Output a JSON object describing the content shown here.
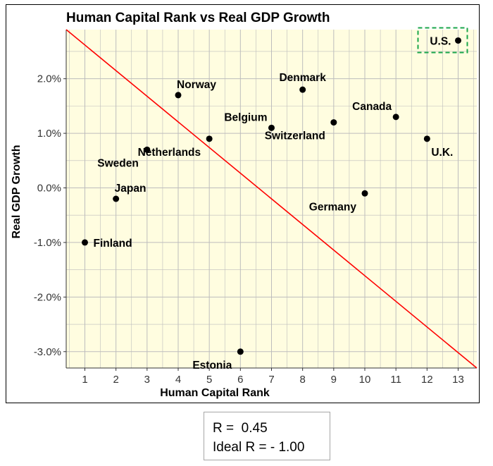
{
  "chart_data": {
    "type": "scatter",
    "title": "Human Capital Rank vs Real GDP Growth",
    "xlabel": "Human Capital Rank",
    "ylabel": "Real GDP Growth",
    "xlim": [
      0.4,
      13.6
    ],
    "ylim": [
      -3.3,
      2.9
    ],
    "x_ticks": [
      1,
      2,
      3,
      4,
      5,
      6,
      7,
      8,
      9,
      10,
      11,
      12,
      13
    ],
    "y_ticks": [
      -3.0,
      -2.0,
      -1.0,
      0.0,
      1.0,
      2.0
    ],
    "y_tick_labels": [
      "-3.0%",
      "-2.0%",
      "-1.0%",
      "0.0%",
      "1.0%",
      "2.0%"
    ],
    "grid": true,
    "background_color": "#fffde0",
    "grid_color": "#bdbdbd",
    "point_color": "#000000",
    "points": [
      {
        "x": 1,
        "y": -1.0,
        "label": "Finland",
        "label_pos": "right"
      },
      {
        "x": 2,
        "y": -0.2,
        "label": "Japan",
        "label_pos": "upper-right"
      },
      {
        "x": 3,
        "y": 0.7,
        "label": "Sweden",
        "label_pos": "lower-left"
      },
      {
        "x": 4,
        "y": 1.7,
        "label": "Norway",
        "label_pos": "upper-right"
      },
      {
        "x": 5,
        "y": 0.9,
        "label": "Netherlands",
        "label_pos": "lower-left"
      },
      {
        "x": 6,
        "y": -3.0,
        "label": "Estonia",
        "label_pos": "lower-left"
      },
      {
        "x": 7,
        "y": 1.1,
        "label": "Belgium",
        "label_pos": "upper-left"
      },
      {
        "x": 8,
        "y": 1.8,
        "label": "Denmark",
        "label_pos": "upper-center"
      },
      {
        "x": 9,
        "y": 1.2,
        "label": "Switzerland",
        "label_pos": "lower-left"
      },
      {
        "x": 10,
        "y": -0.1,
        "label": "Germany",
        "label_pos": "lower-left"
      },
      {
        "x": 11,
        "y": 1.3,
        "label": "Canada",
        "label_pos": "upper-left"
      },
      {
        "x": 12,
        "y": 0.9,
        "label": "U.K.",
        "label_pos": "lower-right"
      },
      {
        "x": 13,
        "y": 2.7,
        "label": "U.S.",
        "label_pos": "left",
        "highlight": true
      }
    ],
    "reference_line": {
      "color": "#ff0000",
      "from": {
        "x": 0.4,
        "y": 2.9
      },
      "to": {
        "x": 13.6,
        "y": -3.3
      }
    },
    "highlight_color": "#1aa64a"
  },
  "stats": {
    "r_text": "R =  0.45",
    "ideal_text": "Ideal R = - 1.00"
  }
}
